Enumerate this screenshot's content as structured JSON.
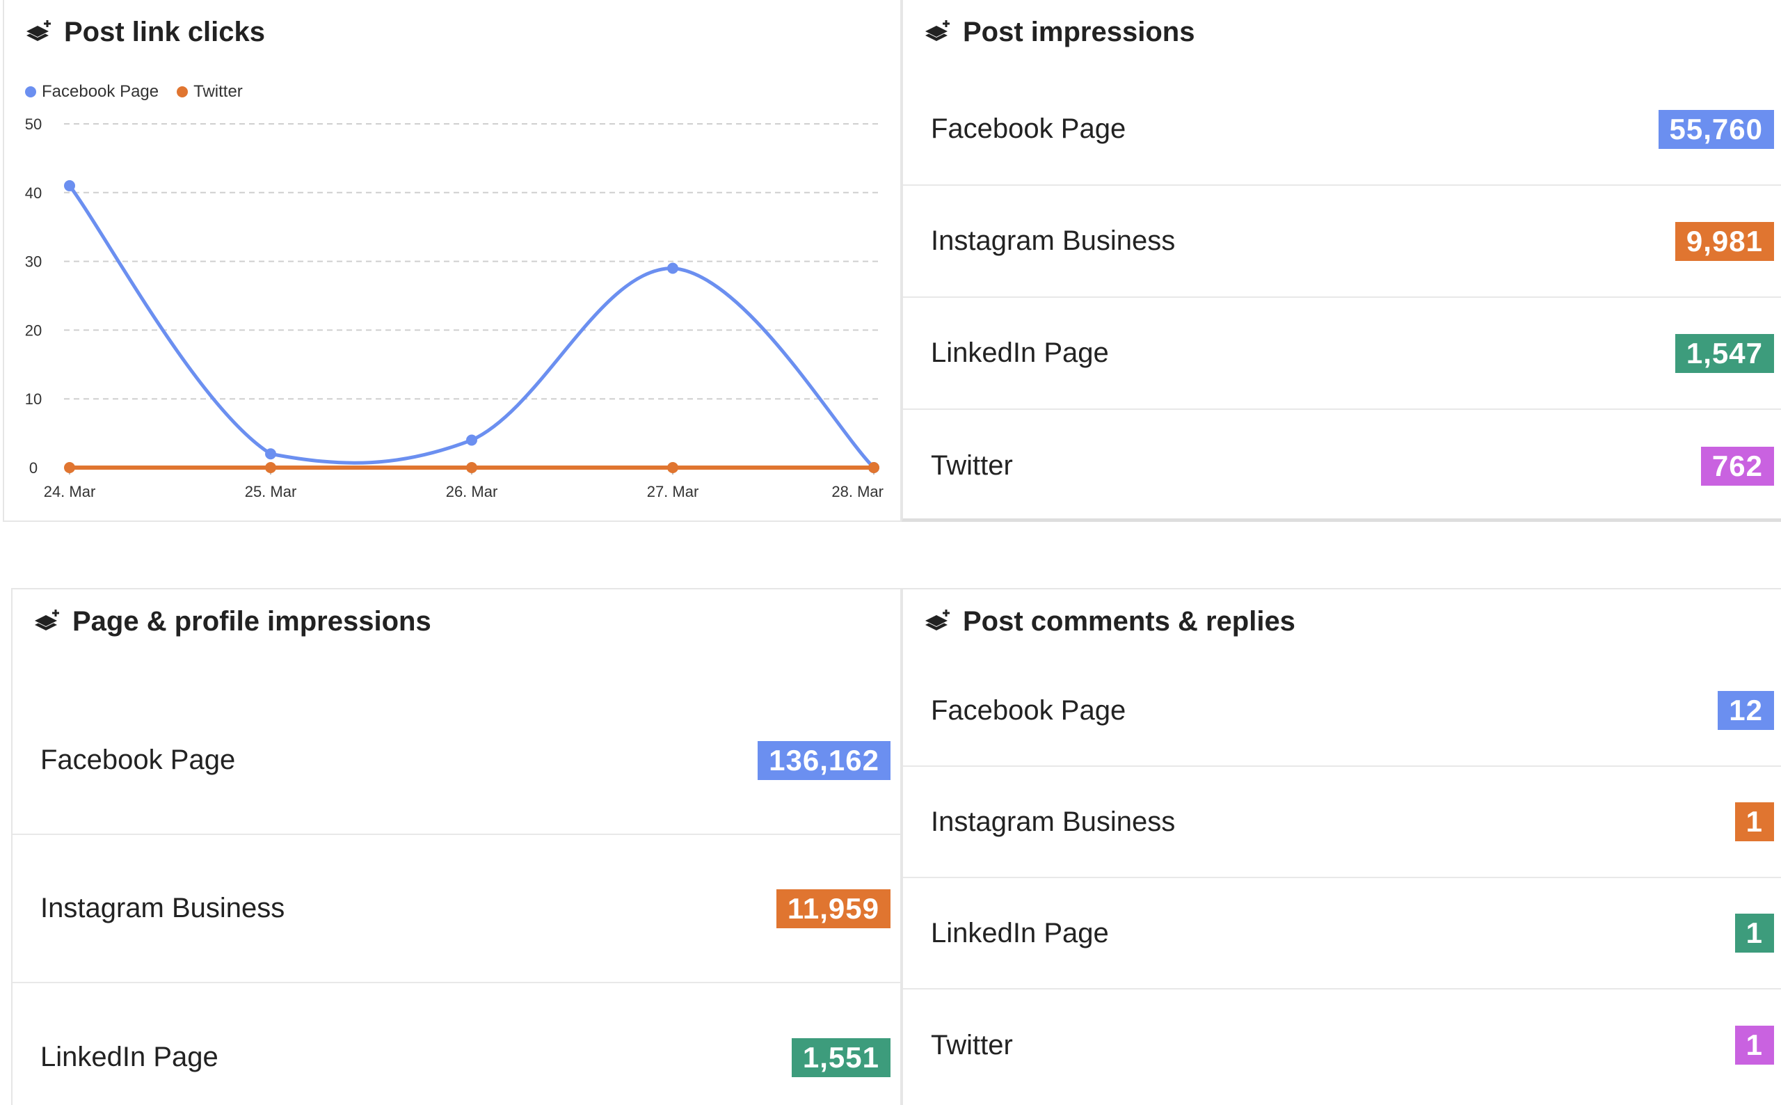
{
  "colors": {
    "facebook": "#6b8ff0",
    "instagram": "#e07530",
    "linkedin": "#3d9c7c",
    "twitter": "#c962e0"
  },
  "link_clicks": {
    "title": "Post link clicks",
    "icon": "layers-plus-icon",
    "legend": [
      {
        "name": "Facebook Page",
        "color": "#6b8ff0"
      },
      {
        "name": "Twitter",
        "color": "#e07530"
      }
    ],
    "chart_data": {
      "type": "line",
      "categories": [
        "24. Mar",
        "25. Mar",
        "26. Mar",
        "27. Mar",
        "28. Mar"
      ],
      "series": [
        {
          "name": "Facebook Page",
          "color": "#6b8ff0",
          "values": [
            41,
            2,
            4,
            29,
            0
          ]
        },
        {
          "name": "Twitter",
          "color": "#e07530",
          "values": [
            0,
            0,
            0,
            0,
            0
          ]
        }
      ],
      "ylim": [
        0,
        50
      ],
      "yticks": [
        "0",
        "10",
        "20",
        "30",
        "40",
        "50"
      ],
      "grid": true,
      "legend_position": "top-left"
    }
  },
  "post_impressions": {
    "title": "Post impressions",
    "icon": "layers-plus-icon",
    "rows": [
      {
        "label": "Facebook Page",
        "value": "55,760",
        "color": "#6b8ff0"
      },
      {
        "label": "Instagram Business",
        "value": "9,981",
        "color": "#e07530"
      },
      {
        "label": "LinkedIn Page",
        "value": "1,547",
        "color": "#3d9c7c"
      },
      {
        "label": "Twitter",
        "value": "762",
        "color": "#c962e0"
      }
    ]
  },
  "page_impressions": {
    "title": "Page & profile impressions",
    "icon": "layers-plus-icon",
    "rows": [
      {
        "label": "Facebook Page",
        "value": "136,162",
        "color": "#6b8ff0"
      },
      {
        "label": "Instagram Business",
        "value": "11,959",
        "color": "#e07530"
      },
      {
        "label": "LinkedIn Page",
        "value": "1,551",
        "color": "#3d9c7c"
      }
    ]
  },
  "comments": {
    "title": "Post comments & replies",
    "icon": "layers-plus-icon",
    "rows": [
      {
        "label": "Facebook Page",
        "value": "12",
        "color": "#6b8ff0"
      },
      {
        "label": "Instagram Business",
        "value": "1",
        "color": "#e07530"
      },
      {
        "label": "LinkedIn Page",
        "value": "1",
        "color": "#3d9c7c"
      },
      {
        "label": "Twitter",
        "value": "1",
        "color": "#c962e0"
      }
    ]
  }
}
